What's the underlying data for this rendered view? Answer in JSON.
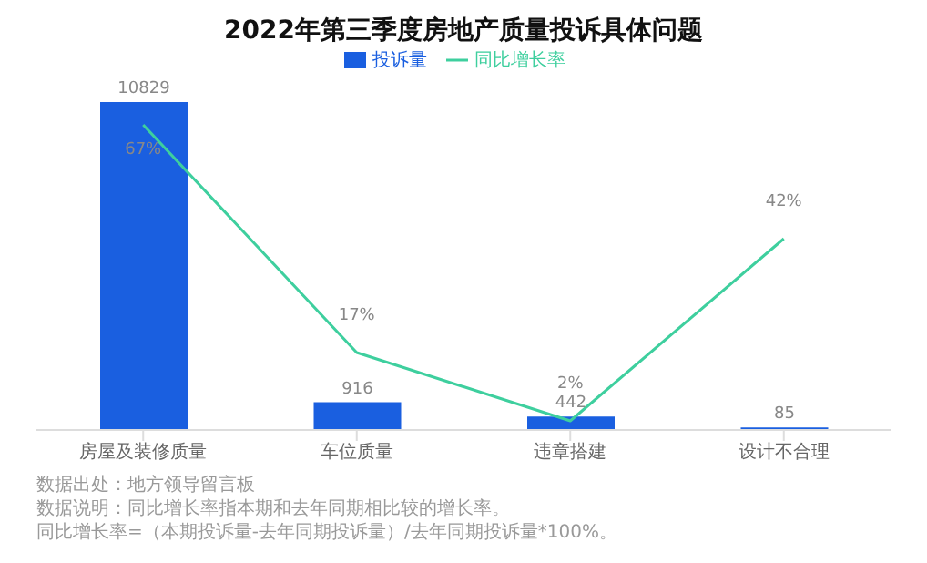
{
  "chart_data": {
    "type": "bar",
    "title": "2022年第三季度房地产质量投诉具体问题",
    "categories": [
      "房屋及装修质量",
      "车位质量",
      "违章搭建",
      "设计不合理"
    ],
    "series": [
      {
        "name": "投诉量",
        "color": "#1a5fe0",
        "values": [
          10829,
          916,
          442,
          85
        ],
        "value_labels": [
          "10829",
          "916",
          "442",
          "85"
        ]
      },
      {
        "name": "同比增长率",
        "type": "line",
        "axis": "y2",
        "color": "#3ecf9e",
        "values": [
          67,
          17,
          2,
          42
        ],
        "value_labels": [
          "67%",
          "17%",
          "2%",
          "42%"
        ]
      }
    ],
    "y2lim": [
      0,
      72
    ],
    "legend": "top",
    "tick_labels": "x",
    "grid": false,
    "marker": "none",
    "annotations": [
      "数据出处：地方领导留言板",
      "数据说明：同比增长率指本期和去年同期相比较的增长率。",
      "同比增长率=（本期投诉量-去年同期投诉量）/去年同期投诉量*100%。"
    ]
  }
}
